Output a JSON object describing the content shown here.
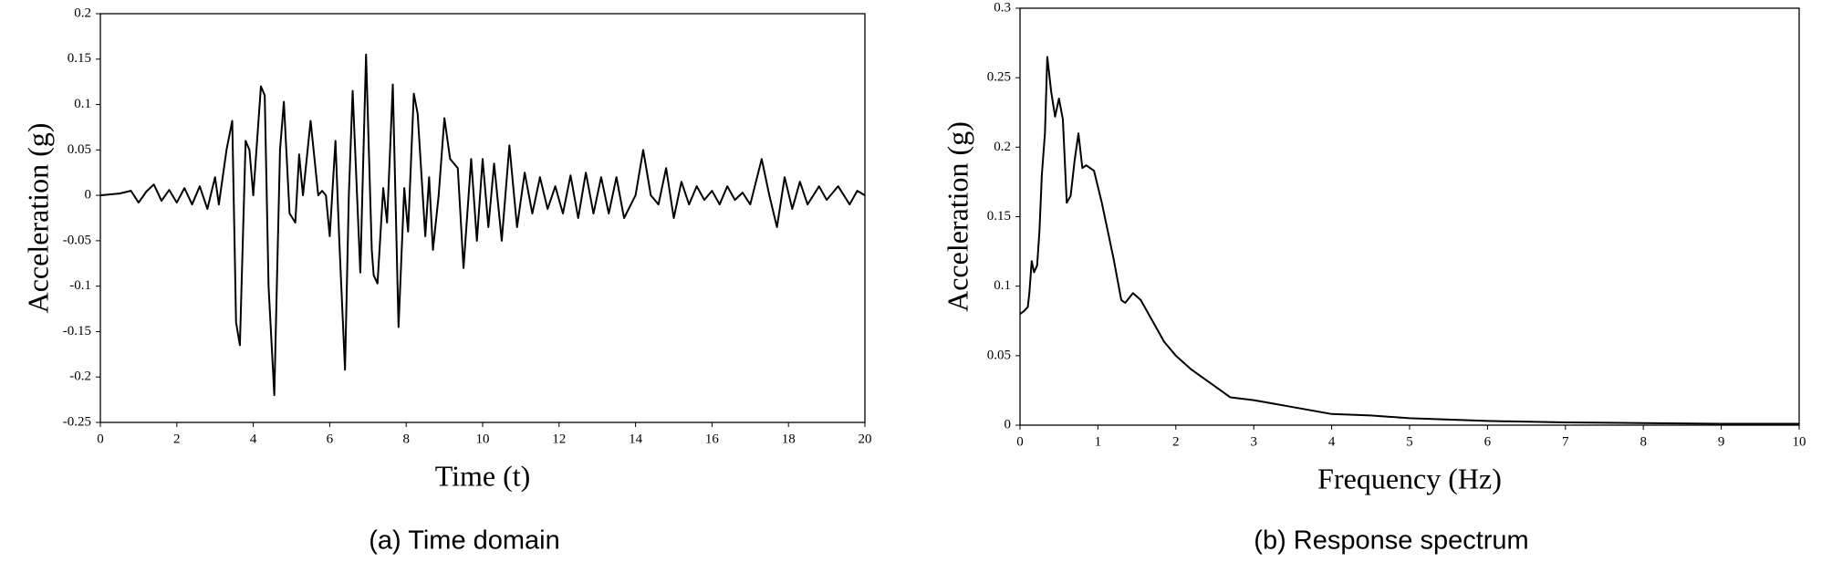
{
  "chart_data": [
    {
      "type": "line",
      "caption": "(a) Time domain",
      "x_label": "Time (t)",
      "y_label": "Acceleration (g)",
      "xlim": [
        0,
        20
      ],
      "xticks": [
        0,
        2,
        4,
        6,
        8,
        10,
        12,
        14,
        16,
        18,
        20
      ],
      "ylim": [
        -0.25,
        0.2
      ],
      "yticks": [
        0.2,
        0.15,
        0.1,
        0.05,
        0,
        -0.05,
        -0.1,
        -0.15,
        -0.2,
        -0.25
      ],
      "grid": false,
      "series": [
        {
          "color": "#000000",
          "x": [
            0,
            0.5,
            0.8,
            1.0,
            1.2,
            1.4,
            1.6,
            1.8,
            2.0,
            2.2,
            2.4,
            2.6,
            2.8,
            3.0,
            3.1,
            3.2,
            3.3,
            3.45,
            3.55,
            3.65,
            3.8,
            3.9,
            4.0,
            4.1,
            4.2,
            4.3,
            4.4,
            4.55,
            4.7,
            4.8,
            4.95,
            5.1,
            5.2,
            5.3,
            5.5,
            5.7,
            5.8,
            5.9,
            6.0,
            6.15,
            6.25,
            6.4,
            6.5,
            6.6,
            6.8,
            6.95,
            7.1,
            7.15,
            7.25,
            7.4,
            7.5,
            7.65,
            7.8,
            7.95,
            8.05,
            8.2,
            8.3,
            8.5,
            8.6,
            8.7,
            8.85,
            9.0,
            9.15,
            9.35,
            9.5,
            9.7,
            9.85,
            10.0,
            10.15,
            10.3,
            10.5,
            10.7,
            10.9,
            11.1,
            11.3,
            11.5,
            11.7,
            11.9,
            12.1,
            12.3,
            12.5,
            12.7,
            12.9,
            13.1,
            13.3,
            13.5,
            13.7,
            14.0,
            14.2,
            14.4,
            14.6,
            14.8,
            15.0,
            15.2,
            15.4,
            15.6,
            15.8,
            16.0,
            16.2,
            16.4,
            16.6,
            16.8,
            17.0,
            17.3,
            17.5,
            17.7,
            17.9,
            18.1,
            18.3,
            18.5,
            18.8,
            19.0,
            19.3,
            19.6,
            19.8,
            20
          ],
          "values": [
            0,
            0.002,
            0.005,
            -0.008,
            0.004,
            0.012,
            -0.006,
            0.006,
            -0.008,
            0.008,
            -0.01,
            0.01,
            -0.015,
            0.02,
            -0.01,
            0.02,
            0.05,
            0.082,
            -0.14,
            -0.165,
            0.06,
            0.05,
            0.0,
            0.06,
            0.12,
            0.11,
            -0.1,
            -0.22,
            0.05,
            0.103,
            -0.02,
            -0.03,
            0.045,
            0.0,
            0.082,
            0.0,
            0.005,
            0.0,
            -0.045,
            0.06,
            -0.05,
            -0.192,
            0.0,
            0.115,
            -0.085,
            0.155,
            -0.06,
            -0.088,
            -0.097,
            0.008,
            -0.03,
            0.122,
            -0.145,
            0.008,
            -0.04,
            0.112,
            0.09,
            -0.045,
            0.02,
            -0.06,
            0.0,
            0.085,
            0.04,
            0.03,
            -0.08,
            0.04,
            -0.05,
            0.04,
            -0.035,
            0.035,
            -0.05,
            0.055,
            -0.035,
            0.025,
            -0.02,
            0.02,
            -0.015,
            0.01,
            -0.02,
            0.022,
            -0.025,
            0.025,
            -0.02,
            0.02,
            -0.02,
            0.02,
            -0.025,
            0.0,
            0.05,
            0.0,
            -0.01,
            0.03,
            -0.025,
            0.015,
            -0.01,
            0.01,
            -0.005,
            0.005,
            -0.01,
            0.01,
            -0.005,
            0.003,
            -0.01,
            0.04,
            0.0,
            -0.035,
            0.02,
            -0.015,
            0.015,
            -0.01,
            0.01,
            -0.005,
            0.01,
            -0.01,
            0.005,
            0
          ]
        }
      ]
    },
    {
      "type": "line",
      "caption": "(b) Response spectrum",
      "x_label": "Frequency (Hz)",
      "y_label": "Acceleration (g)",
      "xlim": [
        0,
        10
      ],
      "xticks": [
        0,
        1,
        2,
        3,
        4,
        5,
        6,
        7,
        8,
        9,
        10
      ],
      "ylim": [
        0,
        0.3
      ],
      "yticks": [
        0.3,
        0.25,
        0.2,
        0.15,
        0.1,
        0.05,
        0
      ],
      "grid": false,
      "series": [
        {
          "color": "#000000",
          "x": [
            0,
            0.05,
            0.1,
            0.12,
            0.15,
            0.18,
            0.22,
            0.25,
            0.28,
            0.32,
            0.35,
            0.4,
            0.45,
            0.5,
            0.55,
            0.6,
            0.65,
            0.7,
            0.75,
            0.8,
            0.85,
            0.95,
            1.05,
            1.2,
            1.3,
            1.35,
            1.45,
            1.55,
            1.7,
            1.85,
            2.0,
            2.2,
            2.5,
            2.7,
            3.0,
            3.5,
            4.0,
            4.5,
            5.0,
            6,
            7,
            8,
            9,
            10
          ],
          "values": [
            0.08,
            0.082,
            0.085,
            0.095,
            0.118,
            0.11,
            0.115,
            0.14,
            0.18,
            0.21,
            0.265,
            0.24,
            0.222,
            0.235,
            0.22,
            0.16,
            0.165,
            0.19,
            0.21,
            0.185,
            0.187,
            0.183,
            0.16,
            0.12,
            0.09,
            0.088,
            0.095,
            0.09,
            0.075,
            0.06,
            0.05,
            0.04,
            0.028,
            0.02,
            0.018,
            0.013,
            0.008,
            0.007,
            0.005,
            0.003,
            0.002,
            0.0015,
            0.001,
            0.001
          ]
        }
      ]
    }
  ]
}
